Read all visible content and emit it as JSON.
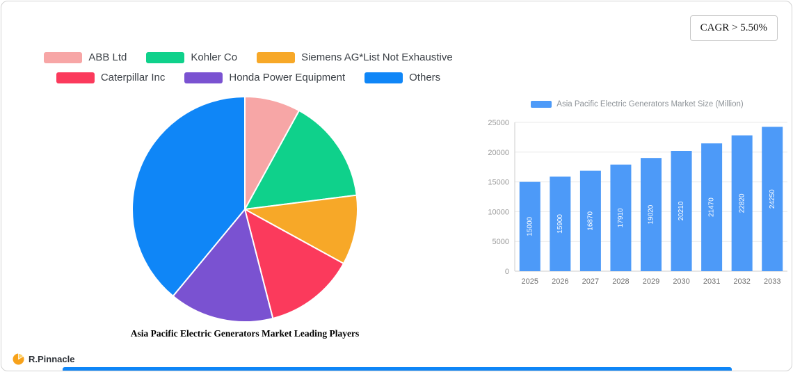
{
  "cagr_label": "CAGR > 5.50%",
  "footer": {
    "brand": "R.Pinnacle"
  },
  "brand_color": "#f7a21b",
  "accent_blue": "#0f86f7",
  "chart_data": [
    {
      "type": "pie",
      "title": "Asia Pacific Electric Generators Market Leading Players",
      "labels": [
        "ABB Ltd",
        "Kohler Co",
        "Siemens AG*List Not Exhaustive",
        "Caterpillar Inc",
        "Honda Power Equipment",
        "Others"
      ],
      "values": [
        8,
        15,
        10,
        13,
        15,
        39
      ],
      "colors": [
        "#f7a6a6",
        "#0fd18b",
        "#f7a828",
        "#fb3a5c",
        "#7a52d1",
        "#0f86f7"
      ],
      "legend_position": "top",
      "legend_rows": [
        [
          0,
          1,
          2
        ],
        [
          3,
          4,
          5
        ]
      ]
    },
    {
      "type": "bar",
      "series_name": "Asia Pacific Electric Generators Market Size (Million)",
      "categories": [
        "2025",
        "2026",
        "2027",
        "2028",
        "2029",
        "2030",
        "2031",
        "2032",
        "2033"
      ],
      "values": [
        15000,
        15900,
        16870,
        17910,
        19020,
        20210,
        21470,
        22820,
        24250
      ],
      "color": "#4d9af8",
      "ylim": [
        0,
        25000
      ],
      "yticks": [
        0,
        5000,
        10000,
        15000,
        20000,
        25000
      ],
      "grid": true,
      "value_labels": "inside-rotated"
    }
  ]
}
